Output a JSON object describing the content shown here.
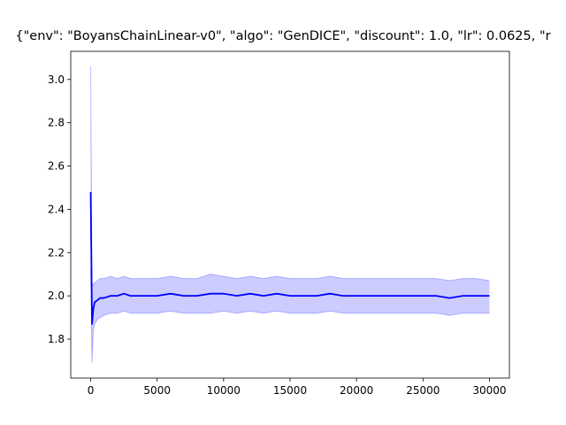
{
  "chart_data": {
    "type": "line",
    "title": "{\"env\": \"BoyansChainLinear-v0\", \"algo\": \"GenDICE\", \"discount\": 1.0, \"lr\": 0.0625, \"r",
    "xlabel": "",
    "ylabel": "",
    "xlim": [
      -1500,
      31500
    ],
    "ylim": [
      1.62,
      3.13
    ],
    "xticks": [
      0,
      5000,
      10000,
      15000,
      20000,
      25000,
      30000
    ],
    "yticks": [
      1.8,
      2.0,
      2.2,
      2.4,
      2.6,
      2.8,
      3.0
    ],
    "xtick_labels": [
      "0",
      "5000",
      "10000",
      "15000",
      "20000",
      "25000",
      "30000"
    ],
    "ytick_labels": [
      "1.8",
      "2.0",
      "2.2",
      "2.4",
      "2.6",
      "2.8",
      "3.0"
    ],
    "grid": false,
    "series": [
      {
        "role": "mean",
        "color": "#0000ff",
        "x": [
          0,
          100,
          200,
          300,
          500,
          700,
          1000,
          1500,
          2000,
          2500,
          3000,
          4000,
          5000,
          6000,
          7000,
          8000,
          9000,
          10000,
          11000,
          12000,
          13000,
          14000,
          15000,
          16000,
          17000,
          18000,
          19000,
          20000,
          21000,
          22000,
          23000,
          24000,
          25000,
          26000,
          27000,
          28000,
          29000,
          30000
        ],
        "y": [
          2.48,
          1.87,
          1.94,
          1.97,
          1.98,
          1.99,
          1.99,
          2.0,
          2.0,
          2.01,
          2.0,
          2.0,
          2.0,
          2.01,
          2.0,
          2.0,
          2.01,
          2.01,
          2.0,
          2.01,
          2.0,
          2.01,
          2.0,
          2.0,
          2.0,
          2.01,
          2.0,
          2.0,
          2.0,
          2.0,
          2.0,
          2.0,
          2.0,
          2.0,
          1.99,
          2.0,
          2.0,
          2.0
        ]
      },
      {
        "role": "spread",
        "color": "#0000ff",
        "x": [
          0,
          100,
          200,
          300,
          500,
          700,
          1000,
          1500,
          2000,
          2500,
          3000,
          4000,
          5000,
          6000,
          7000,
          8000,
          9000,
          10000,
          11000,
          12000,
          13000,
          14000,
          15000,
          16000,
          17000,
          18000,
          19000,
          20000,
          21000,
          22000,
          23000,
          24000,
          25000,
          26000,
          27000,
          28000,
          29000,
          30000
        ],
        "upper": [
          3.06,
          2.06,
          2.05,
          2.06,
          2.07,
          2.08,
          2.08,
          2.09,
          2.08,
          2.09,
          2.08,
          2.08,
          2.08,
          2.09,
          2.08,
          2.08,
          2.1,
          2.09,
          2.08,
          2.09,
          2.08,
          2.09,
          2.08,
          2.08,
          2.08,
          2.09,
          2.08,
          2.08,
          2.08,
          2.08,
          2.08,
          2.08,
          2.08,
          2.08,
          2.07,
          2.08,
          2.08,
          2.07
        ],
        "lower": [
          2.12,
          1.69,
          1.84,
          1.87,
          1.89,
          1.9,
          1.91,
          1.92,
          1.92,
          1.93,
          1.92,
          1.92,
          1.92,
          1.93,
          1.92,
          1.92,
          1.92,
          1.93,
          1.92,
          1.93,
          1.92,
          1.93,
          1.92,
          1.92,
          1.92,
          1.93,
          1.92,
          1.92,
          1.92,
          1.92,
          1.92,
          1.92,
          1.92,
          1.92,
          1.91,
          1.92,
          1.92,
          1.92
        ]
      }
    ]
  }
}
